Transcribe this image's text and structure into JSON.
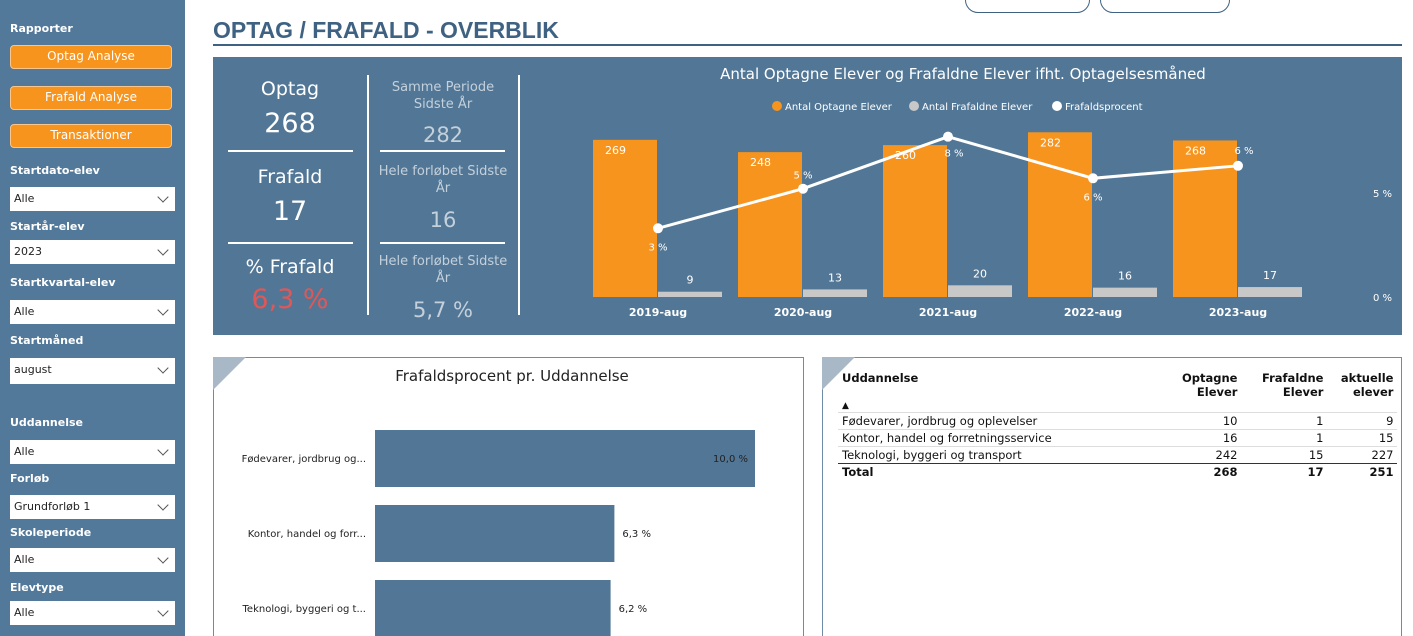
{
  "sidebar": {
    "heading": "Rapporter",
    "buttons": [
      "Optag Analyse",
      "Frafald Analyse",
      "Transaktioner"
    ],
    "filters": [
      {
        "label": "Startdato-elev",
        "value": "Alle"
      },
      {
        "label": "Startår-elev",
        "value": "2023"
      },
      {
        "label": "Startkvartal-elev",
        "value": "Alle"
      },
      {
        "label": "Startmåned",
        "value": "august"
      },
      {
        "label": "Uddannelse",
        "value": "Alle"
      },
      {
        "label": "Forløb",
        "value": "Grundforløb 1"
      },
      {
        "label": "Skoleperiode",
        "value": "Alle"
      },
      {
        "label": "Elevtype",
        "value": "Alle"
      }
    ]
  },
  "header": {
    "title": "OPTAG / FRAFALD - OVERBLIK"
  },
  "kpis": {
    "current": [
      {
        "label": "Optag",
        "value": 268
      },
      {
        "label": "Frafald",
        "value": 17
      },
      {
        "label": "% Frafald",
        "value": "6,3 %"
      }
    ],
    "previous": [
      {
        "label": "Samme Periode Sidste År",
        "value": 282
      },
      {
        "label": "Hele forløbet Sidste År",
        "value": 16
      },
      {
        "label": "Hele forløbet Sidste År",
        "value": "5,7 %"
      }
    ]
  },
  "chart_data": [
    {
      "type": "bar",
      "title": "Antal Optagne Elever og Frafaldne Elever ifht. Optagelsesmåned",
      "categories": [
        "2019-aug",
        "2020-aug",
        "2021-aug",
        "2022-aug",
        "2023-aug"
      ],
      "series": [
        {
          "name": "Antal Optagne Elever",
          "color": "#f7941d",
          "values": [
            269,
            248,
            260,
            282,
            268
          ]
        },
        {
          "name": "Antal Frafaldne Elever",
          "color": "#c8c8c8",
          "values": [
            9,
            13,
            20,
            16,
            17
          ]
        },
        {
          "name": "Frafaldsprocent",
          "color": "#ffffff",
          "type": "line",
          "axis": "y2",
          "values": [
            3.3,
            5.2,
            7.7,
            5.7,
            6.3
          ],
          "value_labels": [
            "3 %",
            "5 %",
            "8 %",
            "6 %",
            "6 %"
          ]
        }
      ],
      "ylim": [
        0,
        303
      ],
      "y2lim": [
        0,
        8.5
      ],
      "y2ticks": [
        {
          "value": 0,
          "label": "0 %"
        },
        {
          "value": 5,
          "label": "5 %"
        }
      ],
      "legend": "top"
    },
    {
      "type": "hbar",
      "title": "Frafaldsprocent pr. Uddannelse",
      "categories": [
        "Fødevarer, jordbrug og...",
        "Kontor, handel og forr...",
        "Teknologi, byggeri og t..."
      ],
      "values": [
        10.0,
        6.3,
        6.2
      ],
      "value_labels": [
        "10,0 %",
        "6,3 %",
        "6,2 %"
      ],
      "color": "#527796",
      "xlim": [
        0,
        10
      ]
    }
  ],
  "table": {
    "header": [
      "Uddannelse",
      "Optagne Elever",
      "Frafaldne Elever",
      "aktuelle elever"
    ],
    "rows": [
      [
        "Fødevarer, jordbrug og oplevelser",
        10,
        1,
        9
      ],
      [
        "Kontor, handel og forretningsservice",
        16,
        1,
        15
      ],
      [
        "Teknologi, byggeri og transport",
        242,
        15,
        227
      ]
    ],
    "total": [
      "Total",
      268,
      17,
      251
    ]
  }
}
